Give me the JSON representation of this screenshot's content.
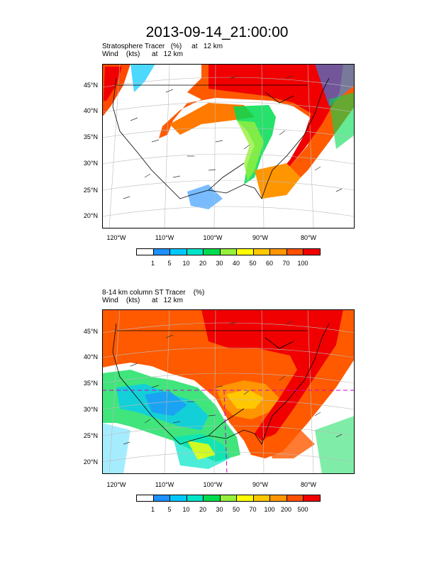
{
  "title": "2013-09-14_21:00:00",
  "panels": [
    {
      "subtitle_line1": "Stratosphere Tracer   (%)     at   12 km",
      "subtitle_line2": "Wind    (kts)      at   12 km",
      "lat_labels": [
        "45°N",
        "40°N",
        "35°N",
        "30°N",
        "25°N",
        "20°N"
      ],
      "lon_labels": [
        "120°W",
        "110°W",
        "100°W",
        "90°W",
        "80°W"
      ],
      "colorbar_labels": [
        "1",
        "5",
        "10",
        "20",
        "30",
        "40",
        "50",
        "60",
        "70",
        "100"
      ]
    },
    {
      "subtitle_line1": "8-14 km column ST Tracer    (%)",
      "subtitle_line2": "Wind    (kts)      at   12 km",
      "lat_labels": [
        "45°N",
        "40°N",
        "35°N",
        "30°N",
        "25°N",
        "20°N"
      ],
      "lon_labels": [
        "120°W",
        "110°W",
        "100°W",
        "90°W",
        "80°W"
      ],
      "colorbar_labels": [
        "1",
        "5",
        "10",
        "20",
        "30",
        "50",
        "70",
        "100",
        "200",
        "500"
      ]
    }
  ],
  "colorbar_colors": [
    "#ffffff",
    "#1e90ff",
    "#00c8ff",
    "#00e5c8",
    "#00dc50",
    "#96f03c",
    "#ffff00",
    "#ffc800",
    "#ff9600",
    "#ff5000",
    "#f00000"
  ]
}
